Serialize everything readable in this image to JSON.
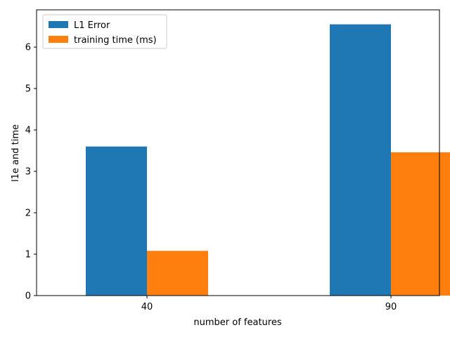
{
  "chart_data": {
    "type": "bar",
    "categories": [
      "40",
      "90"
    ],
    "series": [
      {
        "name": "L1 Error",
        "values": [
          3.6,
          6.55
        ],
        "color": "#1f77b4"
      },
      {
        "name": "training time (ms)",
        "values": [
          1.08,
          3.46
        ],
        "color": "#ff7f0e"
      }
    ],
    "title": "",
    "xlabel": "number of features",
    "ylabel": "l1e and time",
    "ylim": [
      0,
      6.9
    ],
    "yticks": [
      0,
      1,
      2,
      3,
      4,
      5,
      6
    ],
    "grid": false,
    "legend_position": "top-left"
  }
}
